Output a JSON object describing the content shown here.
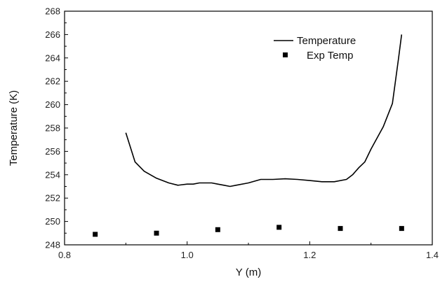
{
  "chart_data": {
    "type": "line",
    "title": "",
    "xlabel": "Y (m)",
    "ylabel": "Temperature (K)",
    "xlim": [
      0.8,
      1.4
    ],
    "ylim": [
      248,
      268
    ],
    "xticks": [
      0.8,
      1.0,
      1.2,
      1.4
    ],
    "xtick_labels": [
      "0.8",
      "1.0",
      "1.2",
      "1.4"
    ],
    "yticks": [
      248,
      250,
      252,
      254,
      256,
      258,
      260,
      262,
      264,
      266,
      268
    ],
    "ytick_labels": [
      "248",
      "250",
      "252",
      "254",
      "256",
      "258",
      "260",
      "262",
      "264",
      "266",
      "268"
    ],
    "grid": false,
    "legend_position": "top-right",
    "series": [
      {
        "name": "Temperature",
        "style": "line",
        "color": "#000000",
        "x": [
          0.9,
          0.915,
          0.93,
          0.95,
          0.97,
          0.985,
          1.0,
          1.01,
          1.02,
          1.04,
          1.05,
          1.06,
          1.07,
          1.08,
          1.1,
          1.12,
          1.14,
          1.16,
          1.18,
          1.2,
          1.22,
          1.24,
          1.26,
          1.27,
          1.28,
          1.29,
          1.3,
          1.32,
          1.335,
          1.345,
          1.35
        ],
        "y": [
          257.6,
          255.1,
          254.3,
          253.7,
          253.3,
          253.1,
          253.2,
          253.2,
          253.3,
          253.3,
          253.2,
          253.1,
          253.0,
          253.1,
          253.3,
          253.6,
          253.6,
          253.65,
          253.6,
          253.5,
          253.4,
          253.4,
          253.6,
          254.0,
          254.6,
          255.1,
          256.2,
          258.1,
          260.1,
          264.0,
          266.0
        ]
      },
      {
        "name": "Exp Temp",
        "style": "marker",
        "color": "#000000",
        "x": [
          0.85,
          0.95,
          1.05,
          1.15,
          1.25,
          1.35
        ],
        "y": [
          248.9,
          249.0,
          249.3,
          249.5,
          249.4,
          249.4
        ]
      }
    ]
  }
}
